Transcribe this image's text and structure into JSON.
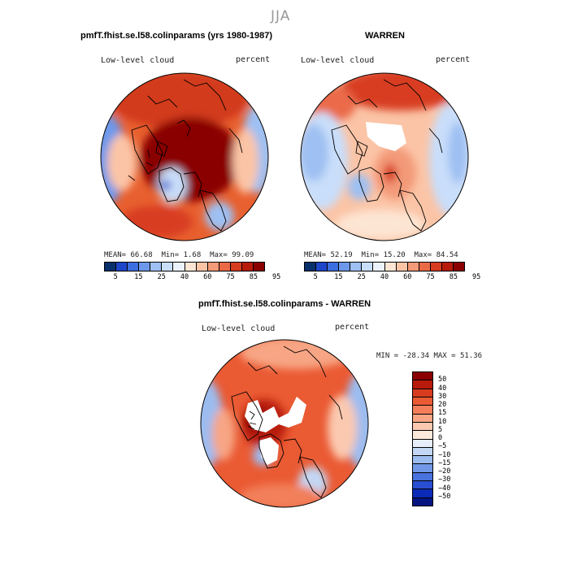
{
  "season": "JJA",
  "panels": [
    {
      "title": "pmfT.fhist.se.l58.colinparams (yrs 1980-1987)",
      "variable": "Low-level cloud",
      "units": "percent",
      "stats": {
        "mean_label": "MEAN=",
        "mean": "66.68",
        "min_label": "Min=",
        "min": "1.68",
        "max_label": "Max=",
        "max": "99.09"
      }
    },
    {
      "title": "WARREN",
      "variable": "Low-level cloud",
      "units": "percent",
      "stats": {
        "mean_label": "MEAN=",
        "mean": "52.19",
        "min_label": "Min=",
        "min": "15.20",
        "max_label": "Max=",
        "max": "84.54"
      }
    }
  ],
  "colorbar_top": {
    "ticks": [
      "5",
      "15",
      "25",
      "40",
      "60",
      "75",
      "85",
      "95"
    ],
    "colors": [
      "#08306b",
      "#1e46c8",
      "#3d6ee0",
      "#6d98ea",
      "#9ec0f2",
      "#c9defa",
      "#ecf2fb",
      "#fde5d3",
      "#fbc4a6",
      "#f39a78",
      "#ea6a48",
      "#d83c20",
      "#b81a0c",
      "#8a0000"
    ]
  },
  "difference": {
    "title": "pmfT.fhist.se.l58.colinparams - WARREN",
    "variable": "Low-level cloud",
    "units": "percent",
    "minmax": {
      "min_label": "MIN =",
      "min": "-28.34",
      "max_label": "MAX =",
      "max": "51.36"
    },
    "ticks": [
      "50",
      "40",
      "30",
      "20",
      "15",
      "10",
      "5",
      "0",
      "−5",
      "−10",
      "−15",
      "−20",
      "−30",
      "−40",
      "−50"
    ],
    "colors": [
      "#8a0000",
      "#b81a0c",
      "#d83c20",
      "#ea5a33",
      "#f27f5a",
      "#f7a584",
      "#fbc9b0",
      "#fde8dc",
      "#e6eefa",
      "#c3d7f4",
      "#9cbcef",
      "#7198e6",
      "#4a72de",
      "#2a4ed2",
      "#0c2ab8",
      "#061480"
    ]
  }
}
